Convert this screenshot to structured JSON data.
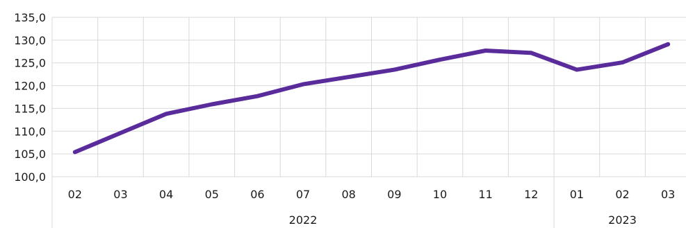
{
  "chart_data": {
    "type": "line",
    "title": "",
    "xlabel": "",
    "ylabel": "",
    "categories": [
      "02",
      "03",
      "04",
      "05",
      "06",
      "07",
      "08",
      "09",
      "10",
      "11",
      "12",
      "01",
      "02",
      "03"
    ],
    "year_groups": [
      {
        "label": "2022",
        "start": 0,
        "end": 10
      },
      {
        "label": "2023",
        "start": 11,
        "end": 13
      }
    ],
    "series": [
      {
        "values": [
          105.4,
          109.6,
          113.8,
          115.9,
          117.7,
          120.3,
          121.9,
          123.5,
          125.7,
          127.7,
          127.2,
          123.5,
          125.1,
          129.1
        ],
        "color": "#5a2b9b"
      }
    ],
    "ylim": [
      100,
      135
    ],
    "y_ticks": [
      "100,0",
      "105,0",
      "110,0",
      "115,0",
      "120,0",
      "125,0",
      "130,0",
      "135,0"
    ],
    "grid": true,
    "legend": "none"
  }
}
